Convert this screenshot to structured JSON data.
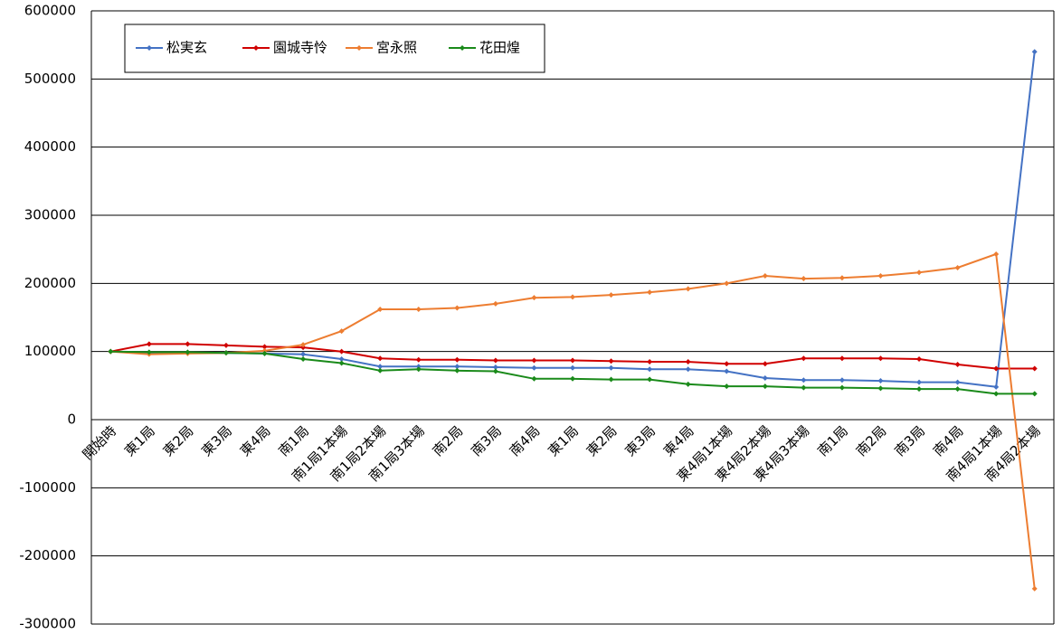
{
  "chart_data": {
    "type": "line",
    "categories": [
      "開始時",
      "東1局",
      "東2局",
      "東3局",
      "東4局",
      "南1局",
      "南1局1本場",
      "南1局2本場",
      "南1局3本場",
      "南2局",
      "南3局",
      "南4局",
      "東1局",
      "東2局",
      "東3局",
      "東4局",
      "東4局1本場",
      "東4局2本場",
      "東4局3本場",
      "南1局",
      "南2局",
      "南3局",
      "南4局",
      "南4局1本場",
      "南4局2本場"
    ],
    "series": [
      {
        "name": "松実玄",
        "color": "#4472c4",
        "values": [
          100000,
          98000,
          98000,
          98000,
          97000,
          96000,
          89000,
          78000,
          78000,
          78000,
          77000,
          76000,
          76000,
          76000,
          74000,
          74000,
          71000,
          61000,
          58000,
          58000,
          57000,
          55000,
          55000,
          48000,
          540000
        ]
      },
      {
        "name": "園城寺怜",
        "color": "#d00000",
        "values": [
          100000,
          111000,
          111000,
          109000,
          107000,
          106000,
          100000,
          90000,
          88000,
          88000,
          87000,
          87000,
          87000,
          86000,
          85000,
          85000,
          82000,
          82000,
          90000,
          90000,
          90000,
          89000,
          81000,
          75000,
          75000
        ]
      },
      {
        "name": "宮永照",
        "color": "#ed7d31",
        "values": [
          100000,
          96000,
          97000,
          98000,
          101000,
          110000,
          130000,
          162000,
          162000,
          164000,
          170000,
          179000,
          180000,
          183000,
          187000,
          192000,
          200000,
          211000,
          207000,
          208000,
          211000,
          216000,
          223000,
          243000,
          -248000
        ]
      },
      {
        "name": "花田煌",
        "color": "#1a8a1a",
        "values": [
          100000,
          99000,
          99000,
          98000,
          97000,
          89000,
          83000,
          72000,
          74000,
          72000,
          71000,
          60000,
          60000,
          59000,
          59000,
          52000,
          49000,
          49000,
          47000,
          47000,
          46000,
          45000,
          45000,
          38000,
          38000
        ]
      }
    ],
    "ylim": [
      -300000,
      600000
    ],
    "yticks": [
      -300000,
      -200000,
      -100000,
      0,
      100000,
      200000,
      300000,
      400000,
      500000,
      600000
    ],
    "grid": true,
    "legend": "upper left"
  }
}
